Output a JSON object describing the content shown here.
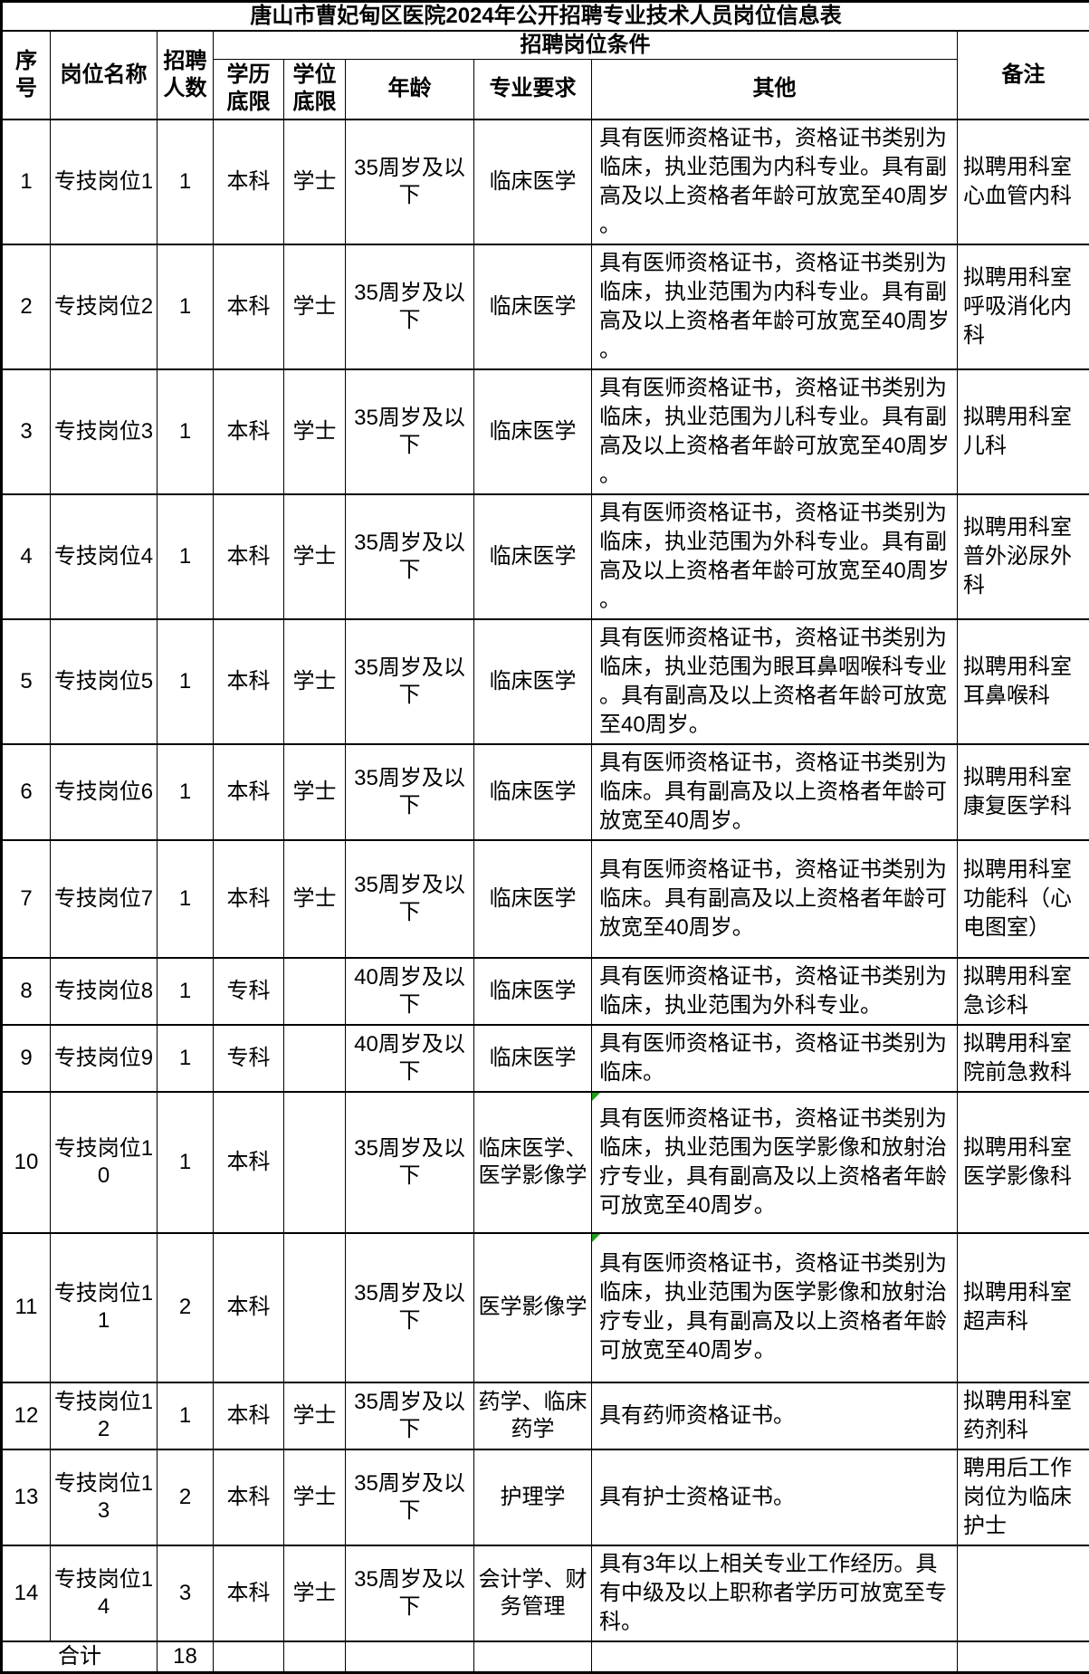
{
  "title": "唐山市曹妃甸区医院2024年公开招聘专业技术人员岗位信息表",
  "header": {
    "no": "序号",
    "position": "岗位名称",
    "count": "招聘人数",
    "conditions": "招聘岗位条件",
    "education": "学历底限",
    "degree": "学位底限",
    "age": "年龄",
    "major": "专业要求",
    "other": "其他",
    "remark": "备注"
  },
  "rows": [
    {
      "no": "1",
      "name": "专技岗位1",
      "count": "1",
      "edu": "本科",
      "degree": "学士",
      "age": "35周岁及以下",
      "major": "临床医学",
      "other": "具有医师资格证书，资格证书类别为临床，执业范围为内科专业。具有副高及以上资格者年龄可放宽至40周岁。",
      "remark": "拟聘用科室心血管内科",
      "marker": false
    },
    {
      "no": "2",
      "name": "专技岗位2",
      "count": "1",
      "edu": "本科",
      "degree": "学士",
      "age": "35周岁及以下",
      "major": "临床医学",
      "other": "具有医师资格证书，资格证书类别为临床，执业范围为内科专业。具有副高及以上资格者年龄可放宽至40周岁。",
      "remark": "拟聘用科室呼吸消化内科",
      "marker": false
    },
    {
      "no": "3",
      "name": "专技岗位3",
      "count": "1",
      "edu": "本科",
      "degree": "学士",
      "age": "35周岁及以下",
      "major": "临床医学",
      "other": "具有医师资格证书，资格证书类别为临床，执业范围为儿科专业。具有副高及以上资格者年龄可放宽至40周岁。",
      "remark": "拟聘用科室儿科",
      "marker": false
    },
    {
      "no": "4",
      "name": "专技岗位4",
      "count": "1",
      "edu": "本科",
      "degree": "学士",
      "age": "35周岁及以下",
      "major": "临床医学",
      "other": "具有医师资格证书，资格证书类别为临床，执业范围为外科专业。具有副高及以上资格者年龄可放宽至40周岁。",
      "remark": "拟聘用科室普外泌尿外科",
      "marker": false
    },
    {
      "no": "5",
      "name": "专技岗位5",
      "count": "1",
      "edu": "本科",
      "degree": "学士",
      "age": "35周岁及以下",
      "major": "临床医学",
      "other": "具有医师资格证书，资格证书类别为临床，执业范围为眼耳鼻咽喉科专业。具有副高及以上资格者年龄可放宽至40周岁。",
      "remark": "拟聘用科室耳鼻喉科",
      "marker": false
    },
    {
      "no": "6",
      "name": "专技岗位6",
      "count": "1",
      "edu": "本科",
      "degree": "学士",
      "age": "35周岁及以下",
      "major": "临床医学",
      "other": "具有医师资格证书，资格证书类别为临床。具有副高及以上资格者年龄可放宽至40周岁。",
      "remark": "拟聘用科室康复医学科",
      "marker": false
    },
    {
      "no": "7",
      "name": "专技岗位7",
      "count": "1",
      "edu": "本科",
      "degree": "学士",
      "age": "35周岁及以下",
      "major": "临床医学",
      "other": "具有医师资格证书，资格证书类别为临床。具有副高及以上资格者年龄可放宽至40周岁。",
      "remark": "拟聘用科室功能科（心电图室）",
      "marker": false
    },
    {
      "no": "8",
      "name": "专技岗位8",
      "count": "1",
      "edu": "专科",
      "degree": "",
      "age": "40周岁及以下",
      "major": "临床医学",
      "other": "具有医师资格证书，资格证书类别为临床，执业范围为外科专业。",
      "remark": "拟聘用科室急诊科",
      "marker": false
    },
    {
      "no": "9",
      "name": "专技岗位9",
      "count": "1",
      "edu": "专科",
      "degree": "",
      "age": "40周岁及以下",
      "major": "临床医学",
      "other": "具有医师资格证书，资格证书类别为临床。",
      "remark": "拟聘用科室院前急救科",
      "marker": false
    },
    {
      "no": "10",
      "name": "专技岗位10",
      "count": "1",
      "edu": "本科",
      "degree": "",
      "age": "35周岁及以下",
      "major": "临床医学、医学影像学",
      "other": "具有医师资格证书，资格证书类别为临床，执业范围为医学影像和放射治疗专业，具有副高及以上资格者年龄可放宽至40周岁。",
      "remark": "拟聘用科室医学影像科",
      "marker": true
    },
    {
      "no": "11",
      "name": "专技岗位11",
      "count": "2",
      "edu": "本科",
      "degree": "",
      "age": "35周岁及以下",
      "major": "医学影像学",
      "other": "具有医师资格证书，资格证书类别为临床，执业范围为医学影像和放射治疗专业，具有副高及以上资格者年龄可放宽至40周岁。",
      "remark": "拟聘用科室超声科",
      "marker": true
    },
    {
      "no": "12",
      "name": "专技岗位12",
      "count": "1",
      "edu": "本科",
      "degree": "学士",
      "age": "35周岁及以下",
      "major": "药学、临床药学",
      "other": "具有药师资格证书。",
      "remark": "拟聘用科室药剂科",
      "marker": false
    },
    {
      "no": "13",
      "name": "专技岗位13",
      "count": "2",
      "edu": "本科",
      "degree": "学士",
      "age": "35周岁及以下",
      "major": "护理学",
      "other": "具有护士资格证书。",
      "remark": "聘用后工作岗位为临床护士",
      "marker": false
    },
    {
      "no": "14",
      "name": "专技岗位14",
      "count": "3",
      "edu": "本科",
      "degree": "学士",
      "age": "35周岁及以下",
      "major": "会计学、财务管理",
      "other": "具有3年以上相关专业工作经历。具有中级及以上职称者学历可放宽至专科。",
      "remark": "",
      "marker": false
    }
  ],
  "total": {
    "label": "合计",
    "count": "18"
  },
  "colors": {
    "border": "#000000",
    "text": "#000000",
    "background": "#ffffff",
    "marker_green": "#1EA01E"
  }
}
